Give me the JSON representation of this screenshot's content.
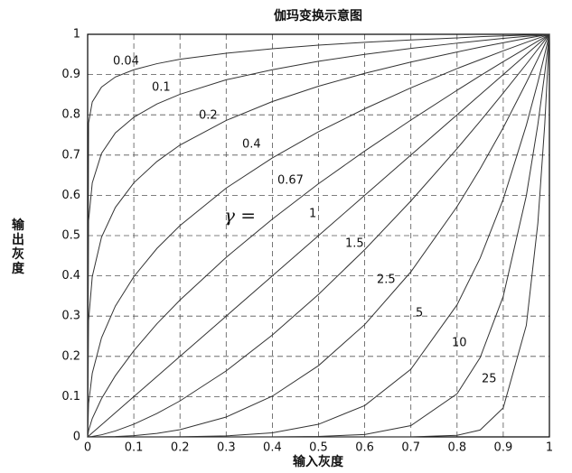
{
  "chart_data": {
    "type": "line",
    "title": "伽玛变换示意图",
    "xlabel": "输入灰度",
    "ylabel": "输出灰度",
    "annotation": "γ =",
    "grid": true,
    "color": "#333333",
    "xlim": [
      0,
      1
    ],
    "ylim": [
      0,
      1
    ],
    "xticks": [
      0,
      0.1,
      0.2,
      0.3,
      0.4,
      0.5,
      0.6,
      0.7,
      0.8,
      0.9,
      1
    ],
    "yticks": [
      0,
      0.1,
      0.2,
      0.3,
      0.4,
      0.5,
      0.6,
      0.7,
      0.8,
      0.9,
      1
    ],
    "x": [
      0,
      0.002,
      0.01,
      0.03,
      0.06,
      0.1,
      0.15,
      0.2,
      0.3,
      0.4,
      0.5,
      0.6,
      0.7,
      0.8,
      0.85,
      0.9,
      0.95,
      0.975,
      0.99,
      1
    ],
    "series": [
      {
        "name": "0.04",
        "values": [
          0,
          0.78,
          0.832,
          0.869,
          0.894,
          0.912,
          0.927,
          0.938,
          0.953,
          0.964,
          0.973,
          0.98,
          0.986,
          0.991,
          0.994,
          0.996,
          0.998,
          0.999,
          0.9996,
          1
        ]
      },
      {
        "name": "0.1",
        "values": [
          0,
          0.537,
          0.631,
          0.704,
          0.755,
          0.794,
          0.827,
          0.851,
          0.887,
          0.912,
          0.933,
          0.95,
          0.965,
          0.978,
          0.984,
          0.99,
          0.995,
          0.997,
          0.999,
          1
        ]
      },
      {
        "name": "0.2",
        "values": [
          0,
          0.289,
          0.398,
          0.496,
          0.57,
          0.631,
          0.684,
          0.725,
          0.786,
          0.833,
          0.871,
          0.903,
          0.931,
          0.956,
          0.968,
          0.979,
          0.99,
          0.995,
          0.998,
          1
        ]
      },
      {
        "name": "0.4",
        "values": [
          0,
          0.083,
          0.158,
          0.246,
          0.325,
          0.398,
          0.468,
          0.525,
          0.618,
          0.693,
          0.758,
          0.815,
          0.867,
          0.915,
          0.937,
          0.959,
          0.98,
          0.99,
          0.996,
          1
        ]
      },
      {
        "name": "0.67",
        "values": [
          0,
          0.0156,
          0.0457,
          0.095,
          0.152,
          0.214,
          0.281,
          0.34,
          0.446,
          0.541,
          0.629,
          0.71,
          0.787,
          0.861,
          0.897,
          0.932,
          0.966,
          0.983,
          0.993,
          1
        ]
      },
      {
        "name": "1",
        "values": [
          0,
          0.002,
          0.01,
          0.03,
          0.06,
          0.1,
          0.15,
          0.2,
          0.3,
          0.4,
          0.5,
          0.6,
          0.7,
          0.8,
          0.85,
          0.9,
          0.95,
          0.975,
          0.99,
          1
        ]
      },
      {
        "name": "1.5",
        "values": [
          0,
          0.0001,
          0.001,
          0.0052,
          0.0147,
          0.0316,
          0.0581,
          0.0894,
          0.164,
          0.253,
          0.354,
          0.465,
          0.586,
          0.716,
          0.784,
          0.854,
          0.926,
          0.963,
          0.985,
          1
        ]
      },
      {
        "name": "2.5",
        "values": [
          0,
          0,
          1e-05,
          0.00016,
          0.0009,
          0.0032,
          0.0087,
          0.0179,
          0.0493,
          0.1012,
          0.177,
          0.279,
          0.41,
          0.572,
          0.666,
          0.768,
          0.88,
          0.939,
          0.975,
          1
        ]
      },
      {
        "name": "5",
        "values": [
          0,
          0,
          0,
          0,
          0,
          1e-05,
          8e-05,
          0.0003,
          0.0024,
          0.0102,
          0.0313,
          0.0778,
          0.168,
          0.328,
          0.444,
          0.59,
          0.774,
          0.881,
          0.951,
          1
        ]
      },
      {
        "name": "10",
        "values": [
          0,
          0,
          0,
          0,
          0,
          0,
          0,
          0,
          0,
          0.0001,
          0.001,
          0.006,
          0.028,
          0.107,
          0.197,
          0.349,
          0.599,
          0.776,
          0.904,
          1
        ]
      },
      {
        "name": "25",
        "values": [
          0,
          0,
          0,
          0,
          0,
          0,
          0,
          0,
          0,
          0,
          0,
          0,
          0.0001,
          0.004,
          0.017,
          0.072,
          0.277,
          0.531,
          0.778,
          1
        ]
      }
    ]
  }
}
